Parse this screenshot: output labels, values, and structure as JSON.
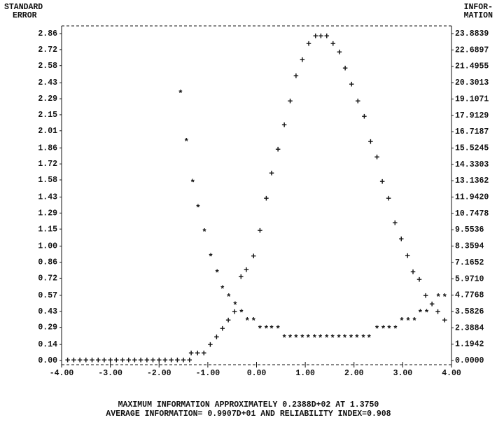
{
  "chart_data": {
    "type": "scatter",
    "y_label": [
      "STANDARD",
      "ERROR"
    ],
    "y2_label": [
      "INFOR-",
      "MATION"
    ],
    "footer": [
      "MAXIMUM INFORMATION APPROXIMATELY 0.2388D+02 AT 1.3750",
      "AVERAGE INFORMATION= 0.9907D+01 AND RELIABILITY INDEX=0.908"
    ],
    "xlim": [
      -4,
      4
    ],
    "xticks": [
      {
        "value": -4,
        "label": "-4.00"
      },
      {
        "value": -3,
        "label": "-3.00"
      },
      {
        "value": -2,
        "label": "-2.00"
      },
      {
        "value": -1,
        "label": "-1.00"
      },
      {
        "value": 0,
        "label": "0.00"
      },
      {
        "value": 1,
        "label": "1.00"
      },
      {
        "value": 2,
        "label": "2.00"
      },
      {
        "value": 3,
        "label": "3.00"
      },
      {
        "value": 4,
        "label": "4.00"
      }
    ],
    "ylim": [
      0,
      2.86
    ],
    "yticks": [
      {
        "value": 2.86,
        "label": "2.86"
      },
      {
        "value": 2.72,
        "label": "2.72"
      },
      {
        "value": 2.58,
        "label": "2.58"
      },
      {
        "value": 2.43,
        "label": "2.43"
      },
      {
        "value": 2.29,
        "label": "2.29"
      },
      {
        "value": 2.15,
        "label": "2.15"
      },
      {
        "value": 2.01,
        "label": "2.01"
      },
      {
        "value": 1.86,
        "label": "1.86"
      },
      {
        "value": 1.72,
        "label": "1.72"
      },
      {
        "value": 1.58,
        "label": "1.58"
      },
      {
        "value": 1.43,
        "label": "1.43"
      },
      {
        "value": 1.29,
        "label": "1.29"
      },
      {
        "value": 1.15,
        "label": "1.15"
      },
      {
        "value": 1.0,
        "label": "1.00"
      },
      {
        "value": 0.86,
        "label": "0.86"
      },
      {
        "value": 0.72,
        "label": "0.72"
      },
      {
        "value": 0.57,
        "label": "0.57"
      },
      {
        "value": 0.43,
        "label": "0.43"
      },
      {
        "value": 0.29,
        "label": "0.29"
      },
      {
        "value": 0.14,
        "label": "0.14"
      },
      {
        "value": 0,
        "label": "0.00"
      }
    ],
    "y2lim": [
      0,
      23.8839
    ],
    "y2ticks": [
      {
        "value": 23.8839,
        "label": "23.8839"
      },
      {
        "value": 22.6897,
        "label": "22.6897"
      },
      {
        "value": 21.4955,
        "label": "21.4955"
      },
      {
        "value": 20.3013,
        "label": "20.3013"
      },
      {
        "value": 19.1071,
        "label": "19.1071"
      },
      {
        "value": 17.9129,
        "label": "17.9129"
      },
      {
        "value": 16.7187,
        "label": "16.7187"
      },
      {
        "value": 15.5245,
        "label": "15.5245"
      },
      {
        "value": 14.3303,
        "label": "14.3303"
      },
      {
        "value": 13.1362,
        "label": "13.1362"
      },
      {
        "value": 11.942,
        "label": "11.9420"
      },
      {
        "value": 10.7478,
        "label": "10.7478"
      },
      {
        "value": 9.5536,
        "label": "9.5536"
      },
      {
        "value": 8.3594,
        "label": "8.3594"
      },
      {
        "value": 7.1652,
        "label": "7.1652"
      },
      {
        "value": 5.971,
        "label": "5.9710"
      },
      {
        "value": 4.7768,
        "label": "4.7768"
      },
      {
        "value": 3.5826,
        "label": "3.5826"
      },
      {
        "value": 2.3884,
        "label": "2.3884"
      },
      {
        "value": 1.1942,
        "label": "1.1942"
      },
      {
        "value": 0,
        "label": "0.0000"
      }
    ],
    "series": [
      {
        "marker": "*",
        "color": "#111111",
        "x": [
          -1.56,
          -1.44,
          -1.31,
          -1.2,
          -1.07,
          -0.94,
          -0.81,
          -0.7,
          -0.57,
          -0.44,
          -0.31,
          -0.19,
          -0.06,
          0.07,
          0.2,
          0.31,
          0.44,
          0.57,
          0.69,
          0.81,
          0.94,
          1.06,
          1.19,
          1.31,
          1.44,
          1.56,
          1.69,
          1.81,
          1.94,
          2.06,
          2.19,
          2.31,
          2.47,
          2.6,
          2.72,
          2.85,
          2.98,
          3.11,
          3.24,
          3.36,
          3.49,
          3.73,
          3.86
        ],
        "values": [
          2.35,
          1.93,
          1.57,
          1.35,
          1.14,
          0.92,
          0.78,
          0.64,
          0.57,
          0.5,
          0.43,
          0.36,
          0.36,
          0.29,
          0.29,
          0.29,
          0.29,
          0.21,
          0.21,
          0.21,
          0.21,
          0.21,
          0.21,
          0.21,
          0.21,
          0.21,
          0.21,
          0.21,
          0.21,
          0.21,
          0.21,
          0.21,
          0.29,
          0.29,
          0.29,
          0.29,
          0.36,
          0.36,
          0.36,
          0.43,
          0.43,
          0.57,
          0.57
        ]
      },
      {
        "marker": "+",
        "color": "#111111",
        "axis": "y2",
        "x": [
          -3.875,
          -3.75,
          -3.625,
          -3.5,
          -3.375,
          -3.25,
          -3.125,
          -3,
          -2.875,
          -2.75,
          -2.625,
          -2.5,
          -2.375,
          -2.25,
          -2.125,
          -2,
          -1.875,
          -1.75,
          -1.625,
          -1.5,
          -1.375,
          -1.34,
          -1.21,
          -1.08,
          -0.95,
          -0.82,
          -0.7,
          -0.58,
          -0.45,
          -0.32,
          -0.21,
          -0.06,
          0.07,
          0.2,
          0.31,
          0.44,
          0.57,
          0.69,
          0.81,
          0.94,
          1.07,
          1.21,
          1.32,
          1.44,
          1.57,
          1.7,
          1.82,
          1.95,
          2.08,
          2.21,
          2.34,
          2.47,
          2.58,
          2.71,
          2.84,
          2.97,
          3.1,
          3.21,
          3.34,
          3.47,
          3.6,
          3.72,
          3.86
        ],
        "values": [
          0,
          0,
          0,
          0,
          0,
          0,
          0,
          0,
          0,
          0,
          0,
          0,
          0,
          0,
          0,
          0,
          0,
          0,
          0,
          0,
          0,
          0.51,
          0.51,
          0.51,
          1.13,
          1.69,
          2.3,
          2.92,
          3.53,
          6.09,
          6.6,
          7.6,
          9.46,
          11.8,
          13.65,
          15.39,
          17.18,
          18.92,
          20.76,
          21.94,
          23.12,
          23.68,
          23.68,
          23.68,
          23.12,
          22.5,
          21.33,
          20.15,
          18.92,
          17.8,
          15.96,
          14.83,
          13.04,
          11.81,
          10.02,
          8.85,
          7.62,
          6.44,
          5.88,
          4.7,
          4.09,
          3.53,
          2.92
        ]
      }
    ]
  }
}
